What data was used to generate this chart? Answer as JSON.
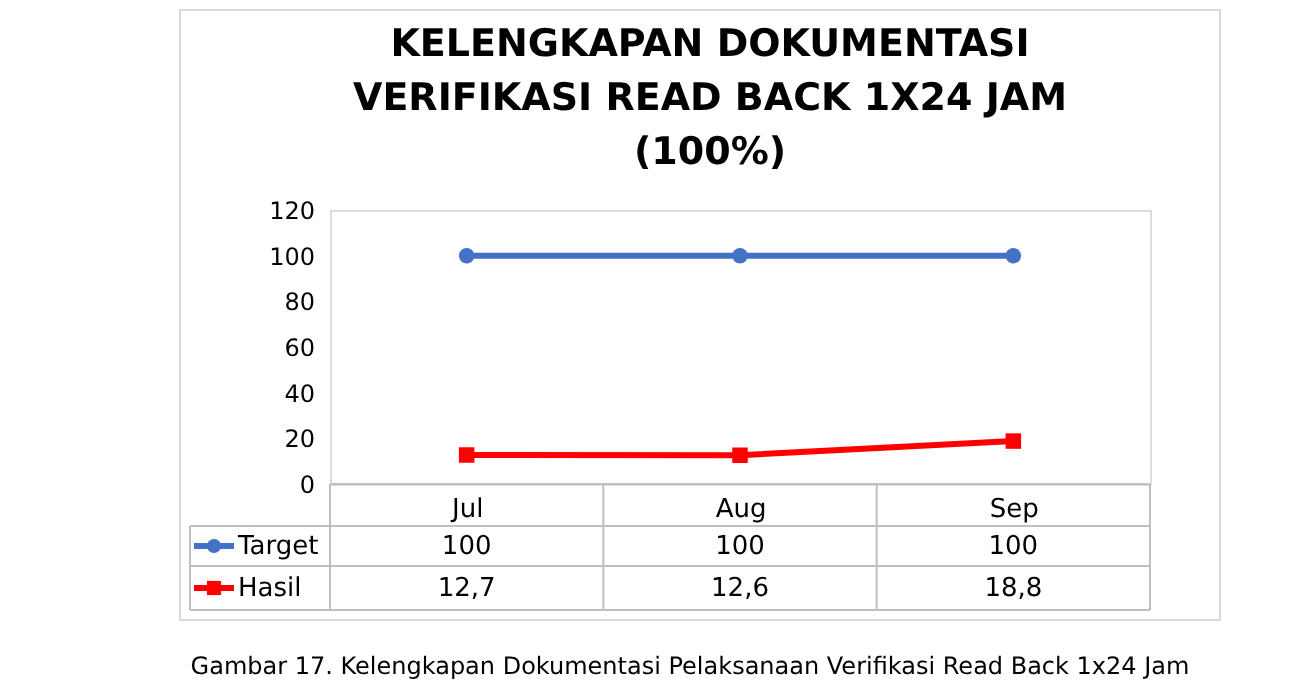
{
  "chart_data": {
    "type": "line",
    "title": "KELENGKAPAN DOKUMENTASI\nVERIFIKASI READ BACK 1X24 JAM\n(100%)",
    "categories": [
      "Jul",
      "Aug",
      "Sep"
    ],
    "series": [
      {
        "name": "Target",
        "color": "#4472c4",
        "marker": "circle",
        "values": [
          100,
          100,
          100
        ],
        "value_labels": [
          "100",
          "100",
          "100"
        ]
      },
      {
        "name": "Hasil",
        "color": "#ff0000",
        "marker": "square",
        "values": [
          12.7,
          12.6,
          18.8
        ],
        "value_labels": [
          "12,7",
          "12,6",
          "18,8"
        ]
      }
    ],
    "ylim": [
      0,
      120
    ],
    "yticks": [
      0,
      20,
      40,
      60,
      80,
      100,
      120
    ],
    "legend": "bottom",
    "annotations": [
      "Gambar 17. Kelengkapan Dokumentasi Pelaksanaan Verifikasi Read Back 1x24 Jam"
    ]
  }
}
